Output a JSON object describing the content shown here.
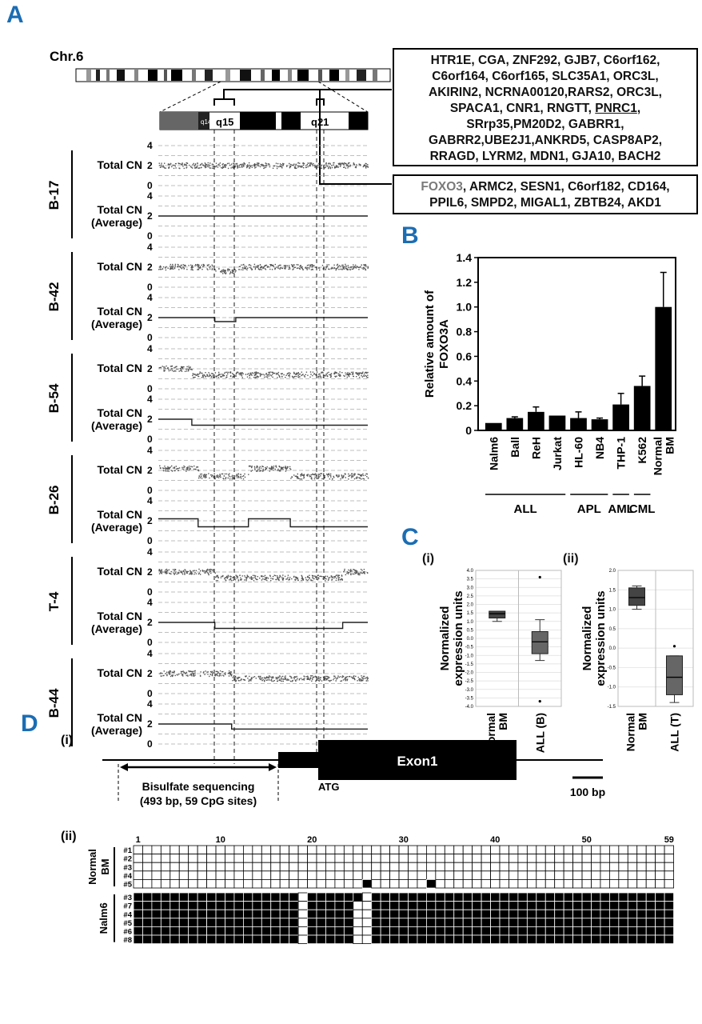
{
  "panels": {
    "A": "A",
    "B": "B",
    "C": "C",
    "D": "D"
  },
  "panelA": {
    "chromosome": "Chr.6",
    "bands": {
      "q14": "q14.1",
      "q15": "q15",
      "q21": "q21"
    },
    "gene_box_1": "HTR1E, CGA, ZNF292, GJB7, C6orf162, C6orf164, C6orf165, SLC35A1, ORC3L, AKIRIN2, NCRNA00120,RARS2, ORC3L, SPACA1, CNR1, RNGTT, PNRC1, SRrp35,PM20D2, GABRR1, GABRR2,UBE2J1,ANKRD5, CASP8AP2, RRAGD, LYRM2, MDN1, GJA10, BACH2",
    "gene_box_1_lines": [
      "HTR1E, CGA, ZNF292, GJB7, C6orf162,",
      "C6orf164, C6orf165, SLC35A1, ORC3L,",
      "AKIRIN2, NCRNA00120,RARS2, ORC3L,",
      "SPACA1, CNR1, RNGTT, ",
      "SRrp35,PM20D2, GABRR1,",
      "GABRR2,UBE2J1,ANKRD5, CASP8AP2,",
      "RRAGD, LYRM2, MDN1, GJA10, BACH2"
    ],
    "gene_box_1_underlined": "PNRC1",
    "gene_box_2_first": "FOXO3",
    "gene_box_2_rest_line1": ", ARMC2, SESN1, C6orf182, CD164,",
    "gene_box_2_line2": "PPIL6, SMPD2, MIGAL1, ZBTB24, AKD1",
    "row_labels": {
      "total": "Total CN",
      "avg_line1": "Total CN",
      "avg_line2": "(Average)"
    },
    "ticks": [
      "4",
      "2",
      "0"
    ],
    "samples": [
      {
        "name": "B-17",
        "pattern": "normal"
      },
      {
        "name": "B-42",
        "pattern": "q15-dip"
      },
      {
        "name": "B-54",
        "pattern": "broad-loss"
      },
      {
        "name": "B-26",
        "pattern": "complex"
      },
      {
        "name": "T-4",
        "pattern": "q15-to-q21-loss"
      },
      {
        "name": "B-44",
        "pattern": "distal-loss"
      }
    ]
  },
  "chart_data": [
    {
      "type": "bar",
      "panel": "B",
      "ylabel": "Relative amount of FOXO3A",
      "ylim": [
        0,
        1.4
      ],
      "yticks": [
        "0",
        "0.2",
        "0.4",
        "0.6",
        "0.8",
        "1.0",
        "1.2",
        "1.4"
      ],
      "categories": [
        "Nalm6",
        "Ball",
        "ReH",
        "Jurkat",
        "HL-60",
        "NB4",
        "THP-1",
        "K562",
        "Normal BM"
      ],
      "values": [
        0.06,
        0.1,
        0.15,
        0.12,
        0.1,
        0.09,
        0.21,
        0.36,
        1.0
      ],
      "errors": [
        0.0,
        0.01,
        0.04,
        0.0,
        0.05,
        0.01,
        0.09,
        0.08,
        0.28
      ],
      "groups": [
        {
          "name": "ALL",
          "from": 0,
          "to": 3
        },
        {
          "name": "APL",
          "from": 4,
          "to": 5
        },
        {
          "name": "AML",
          "from": 6,
          "to": 6
        },
        {
          "name": "CML",
          "from": 7,
          "to": 7
        }
      ]
    },
    {
      "type": "box",
      "panel": "C(i)",
      "ylabel": "Normalized expression units",
      "ylim": [
        -4.0,
        4.0
      ],
      "yticks": [
        "4.0",
        "3.5",
        "3.0",
        "2.5",
        "2.0",
        "1.5",
        "1.0",
        "0.5",
        "0.0",
        "-0.5",
        "-1.0",
        "-1.5",
        "-2.0",
        "-2.5",
        "-3.0",
        "-3.5",
        "-4.0"
      ],
      "categories": [
        "Normal BM",
        "ALL (B)"
      ],
      "boxes": [
        {
          "whisker_low": 1.0,
          "q1": 1.2,
          "median": 1.45,
          "q3": 1.6,
          "whisker_high": 1.6,
          "outliers": []
        },
        {
          "whisker_low": -1.3,
          "q1": -0.9,
          "median": -0.2,
          "q3": 0.4,
          "whisker_high": 1.1,
          "outliers": [
            3.6,
            -3.7
          ]
        }
      ]
    },
    {
      "type": "box",
      "panel": "C(ii)",
      "ylabel": "Normalized expression units",
      "ylim": [
        -1.5,
        2.0
      ],
      "yticks": [
        "2.0",
        "1.5",
        "1.0",
        "0.5",
        "0.0",
        "-0.5",
        "-1.0",
        "-1.5"
      ],
      "categories": [
        "Normal BM",
        "ALL (T)"
      ],
      "boxes": [
        {
          "whisker_low": 1.0,
          "q1": 1.1,
          "median": 1.3,
          "q3": 1.55,
          "whisker_high": 1.6,
          "outliers": []
        },
        {
          "whisker_low": -1.4,
          "q1": -1.2,
          "median": -0.75,
          "q3": -0.2,
          "whisker_high": -0.2,
          "outliers": [
            0.05
          ]
        }
      ]
    }
  ],
  "panelC": {
    "i": "(i)",
    "ii": "(ii)"
  },
  "panelD": {
    "i_label": "(i)",
    "ii_label": "(ii)",
    "exon": "Exon1",
    "atg": "ATG",
    "scale": "100 bp",
    "bisulfite_line1": "Bisulfate sequencing",
    "bisulfite_line2": "(493 bp, 59 CpG sites)",
    "col_numbers": [
      "1",
      "10",
      "20",
      "30",
      "40",
      "50",
      "59"
    ],
    "n_sites": 59,
    "groups": [
      {
        "name": "Normal BM",
        "name_line1": "Normal",
        "name_line2": "BM",
        "clones": [
          "#1",
          "#2",
          "#3",
          "#4",
          "#5"
        ],
        "methylated": {
          "#5": [
            26,
            33
          ]
        }
      },
      {
        "name": "Nalm6",
        "clones": [
          "#3",
          "#7",
          "#4",
          "#5",
          "#6",
          "#8"
        ],
        "unmethylated": {
          "#3": [
            19,
            26
          ],
          "#7": [
            19,
            25,
            26
          ],
          "#4": [
            19,
            25,
            26
          ],
          "#5": [
            19,
            25,
            26
          ],
          "#6": [
            19,
            25,
            26
          ],
          "#8": [
            19,
            25,
            26
          ]
        }
      }
    ]
  }
}
